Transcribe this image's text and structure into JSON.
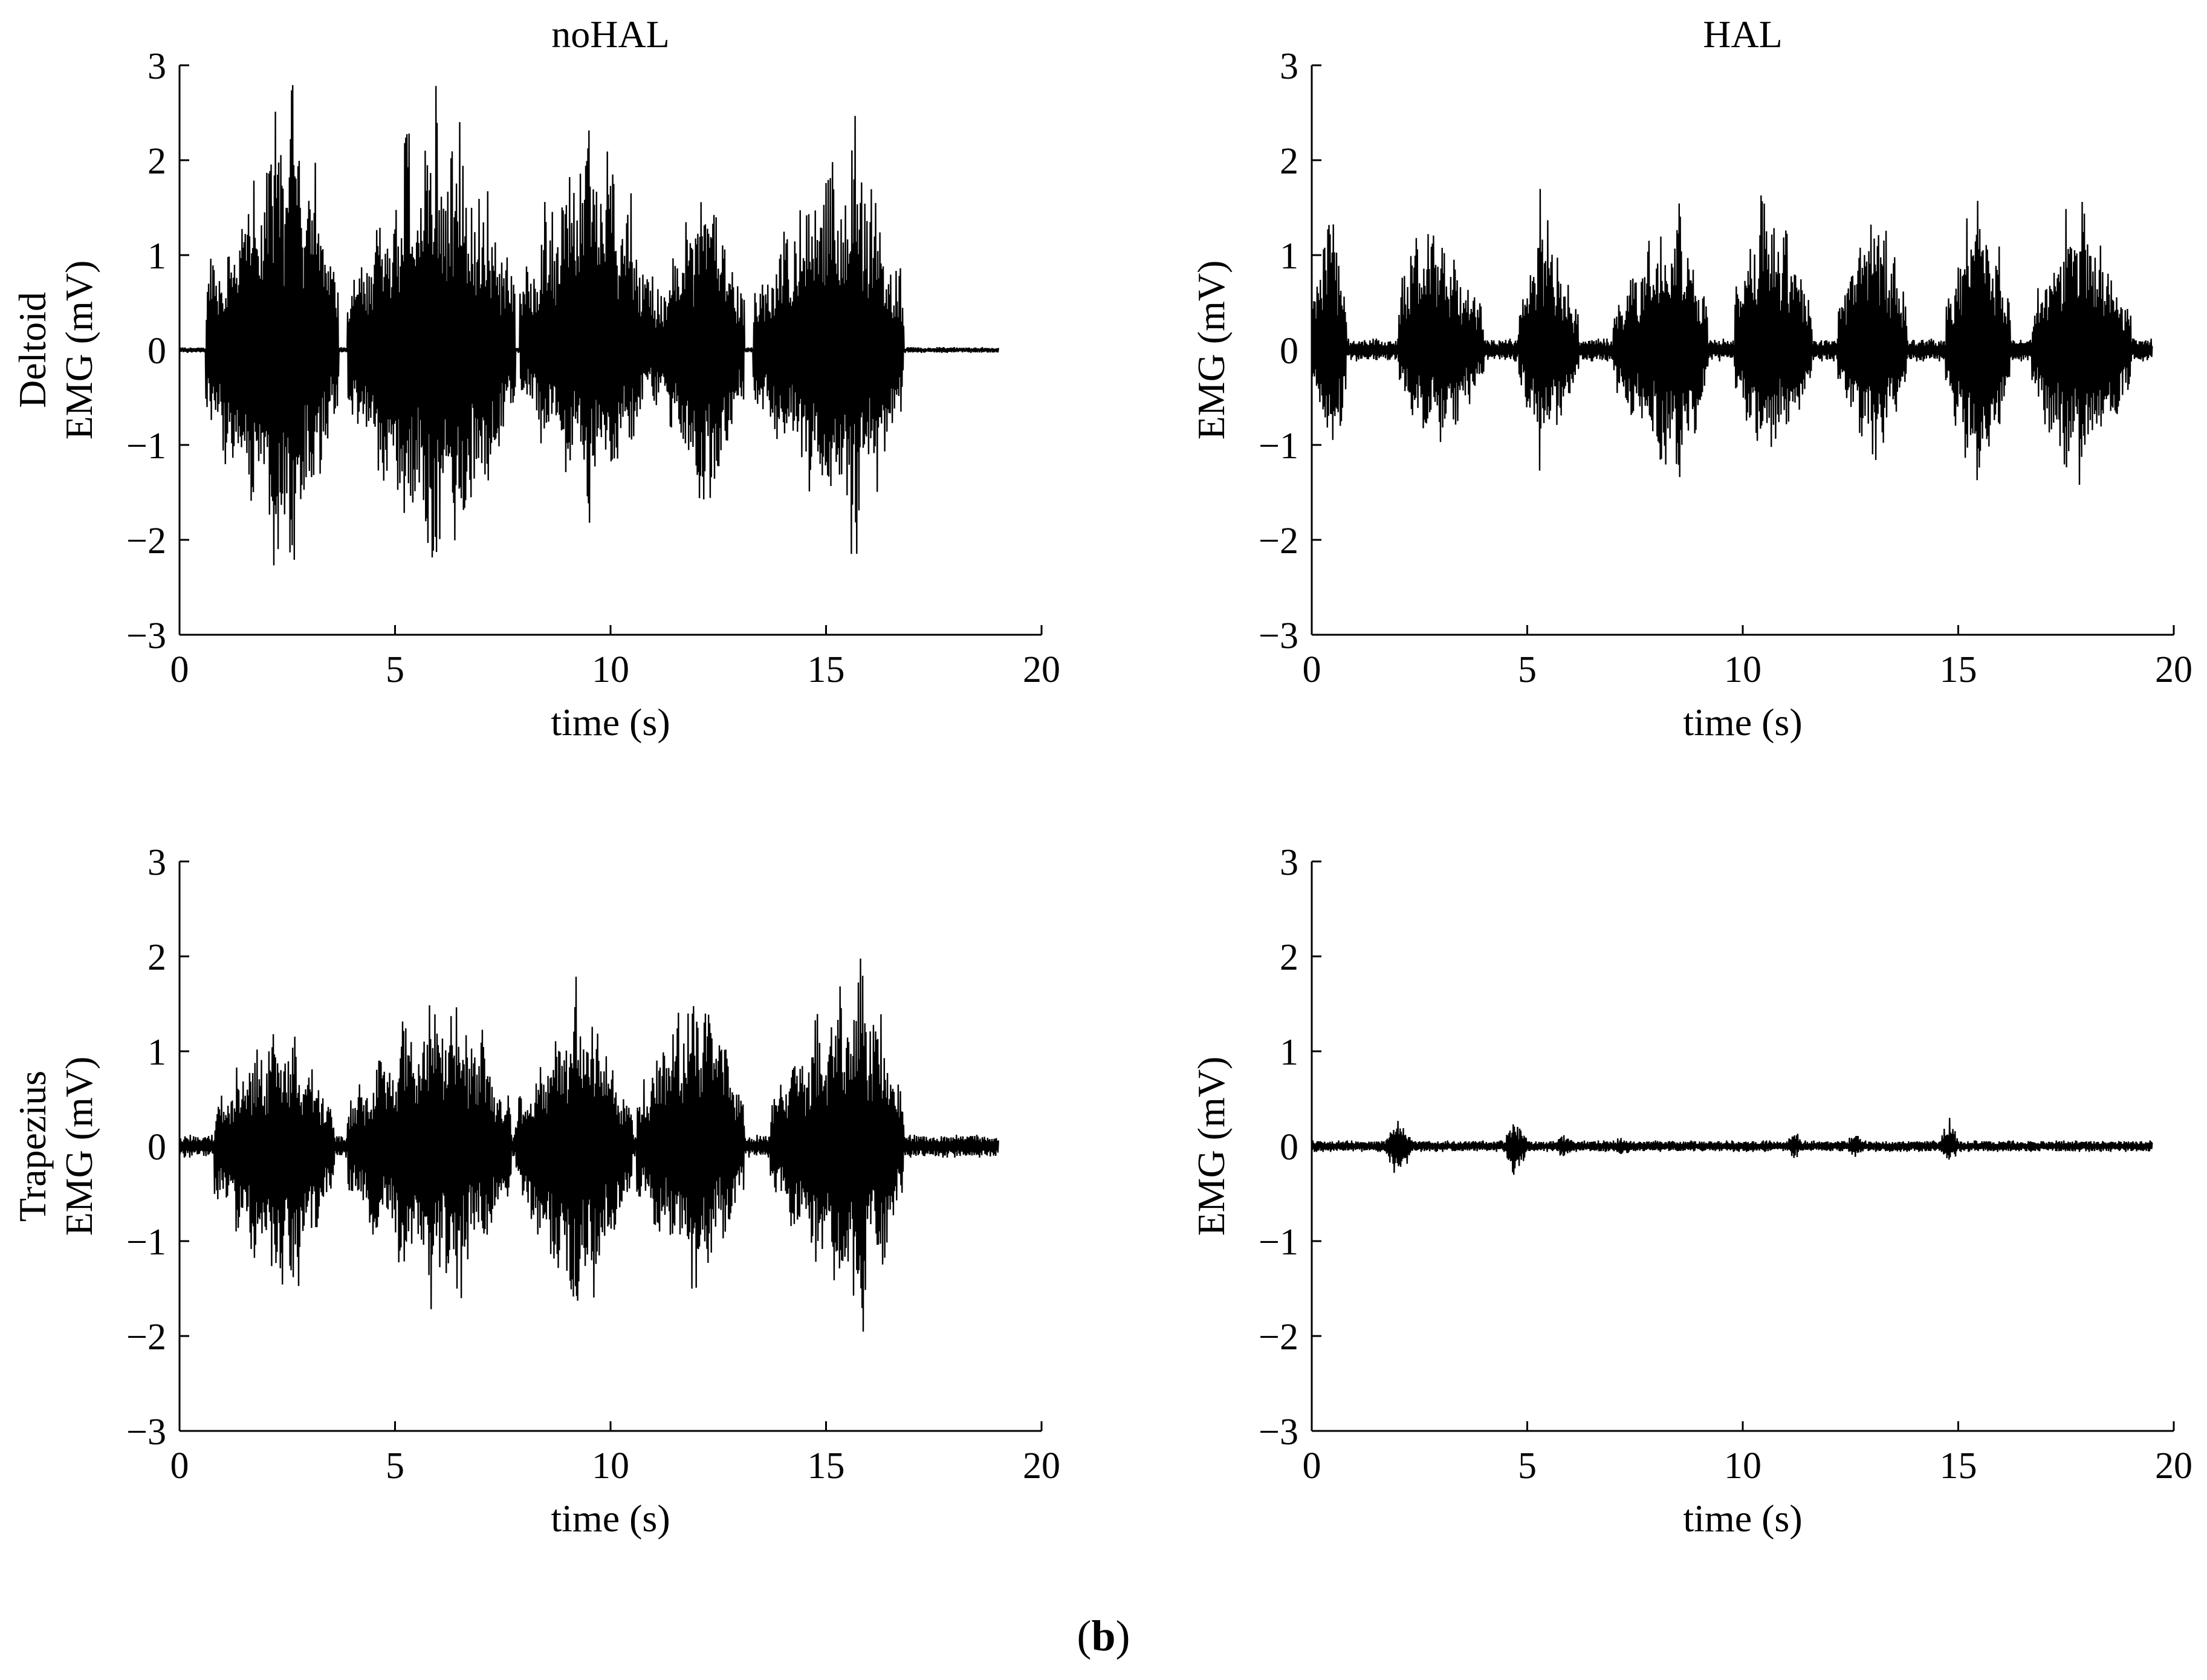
{
  "caption": {
    "open": "(",
    "letter": "b",
    "close": ")"
  },
  "rows": [
    {
      "label": "Deltoid"
    },
    {
      "label": "Trapezius"
    }
  ],
  "columns": [
    {
      "title": "noHAL"
    },
    {
      "title": "HAL"
    }
  ],
  "chart_data": [
    {
      "type": "line",
      "panel": "top-left",
      "title": "noHAL",
      "row_label": "Deltoid",
      "xlabel": "time (s)",
      "ylabel": "EMG (mV)",
      "xlim": [
        0,
        20
      ],
      "ylim": [
        -3,
        3
      ],
      "xticks": [
        0,
        5,
        10,
        15,
        20
      ],
      "yticks": [
        -3,
        -2,
        -1,
        0,
        1,
        2,
        3
      ],
      "grid": false,
      "signal_end": 19,
      "bursts": [
        {
          "start": 0.6,
          "end": 3.7,
          "peak_time": 2.6,
          "amp_max": 2.9,
          "amp_min": -2.6
        },
        {
          "start": 3.9,
          "end": 7.8,
          "peak_time": 6.0,
          "amp_max": 2.9,
          "amp_min": -2.7
        },
        {
          "start": 7.9,
          "end": 11.0,
          "peak_time": 9.6,
          "amp_max": 2.8,
          "amp_min": -1.9
        },
        {
          "start": 11.0,
          "end": 13.1,
          "peak_time": 12.3,
          "amp_max": 2.2,
          "amp_min": -2.0
        },
        {
          "start": 13.3,
          "end": 16.8,
          "peak_time": 15.6,
          "amp_max": 2.6,
          "amp_min": -2.3
        }
      ],
      "baseline_noise": 0.03
    },
    {
      "type": "line",
      "panel": "top-right",
      "title": "HAL",
      "row_label": "",
      "xlabel": "time (s)",
      "ylabel": "EMG (mV)",
      "xlim": [
        0,
        20
      ],
      "ylim": [
        -3,
        3
      ],
      "xticks": [
        0,
        5,
        10,
        15,
        20
      ],
      "yticks": [
        -3,
        -2,
        -1,
        0,
        1,
        2,
        3
      ],
      "grid": false,
      "signal_end": 19.5,
      "bursts": [
        {
          "start": 0.0,
          "end": 0.8,
          "peak_time": 0.5,
          "amp_max": 1.8,
          "amp_min": -1.5
        },
        {
          "start": 2.0,
          "end": 4.0,
          "peak_time": 2.6,
          "amp_max": 1.8,
          "amp_min": -1.2
        },
        {
          "start": 4.8,
          "end": 6.2,
          "peak_time": 5.3,
          "amp_max": 1.7,
          "amp_min": -1.3
        },
        {
          "start": 7.0,
          "end": 9.2,
          "peak_time": 8.5,
          "amp_max": 1.7,
          "amp_min": -1.6
        },
        {
          "start": 9.8,
          "end": 11.6,
          "peak_time": 10.5,
          "amp_max": 2.0,
          "amp_min": -1.5
        },
        {
          "start": 12.2,
          "end": 13.8,
          "peak_time": 13.1,
          "amp_max": 1.8,
          "amp_min": -1.4
        },
        {
          "start": 14.7,
          "end": 16.2,
          "peak_time": 15.5,
          "amp_max": 1.9,
          "amp_min": -1.7
        },
        {
          "start": 16.7,
          "end": 19.0,
          "peak_time": 17.7,
          "amp_max": 1.7,
          "amp_min": -1.6
        }
      ],
      "baseline_noise": 0.12
    },
    {
      "type": "line",
      "panel": "bottom-left",
      "title": "",
      "row_label": "Trapezius",
      "xlabel": "time (s)",
      "ylabel": "EMG (mV)",
      "xlim": [
        0,
        20
      ],
      "ylim": [
        -3,
        3
      ],
      "xticks": [
        0,
        5,
        10,
        15,
        20
      ],
      "yticks": [
        -3,
        -2,
        -1,
        0,
        1,
        2,
        3
      ],
      "grid": false,
      "signal_end": 19,
      "bursts": [
        {
          "start": 0.8,
          "end": 3.6,
          "peak_time": 2.4,
          "amp_max": 1.5,
          "amp_min": -1.9
        },
        {
          "start": 3.9,
          "end": 7.7,
          "peak_time": 6.2,
          "amp_max": 1.9,
          "amp_min": -1.9
        },
        {
          "start": 7.8,
          "end": 10.5,
          "peak_time": 9.2,
          "amp_max": 1.8,
          "amp_min": -2.0
        },
        {
          "start": 10.6,
          "end": 13.1,
          "peak_time": 12.0,
          "amp_max": 2.0,
          "amp_min": -1.8
        },
        {
          "start": 13.7,
          "end": 16.8,
          "peak_time": 15.8,
          "amp_max": 2.0,
          "amp_min": -2.1
        }
      ],
      "baseline_noise": 0.12
    },
    {
      "type": "line",
      "panel": "bottom-right",
      "title": "",
      "row_label": "",
      "xlabel": "time (s)",
      "ylabel": "EMG (mV)",
      "xlim": [
        0,
        20
      ],
      "ylim": [
        -3,
        3
      ],
      "xticks": [
        0,
        5,
        10,
        15,
        20
      ],
      "yticks": [
        -3,
        -2,
        -1,
        0,
        1,
        2,
        3
      ],
      "grid": false,
      "signal_end": 19.5,
      "bursts": [
        {
          "start": 1.7,
          "end": 2.3,
          "peak_time": 2.0,
          "amp_max": 0.35,
          "amp_min": -0.35
        },
        {
          "start": 4.5,
          "end": 5.0,
          "peak_time": 4.7,
          "amp_max": 0.35,
          "amp_min": -0.4
        },
        {
          "start": 5.7,
          "end": 6.1,
          "peak_time": 5.8,
          "amp_max": 0.18,
          "amp_min": -0.15
        },
        {
          "start": 7.0,
          "end": 7.5,
          "peak_time": 7.2,
          "amp_max": 0.12,
          "amp_min": -0.14
        },
        {
          "start": 11.0,
          "end": 11.4,
          "peak_time": 11.2,
          "amp_max": 0.2,
          "amp_min": -0.15
        },
        {
          "start": 12.4,
          "end": 12.8,
          "peak_time": 12.6,
          "amp_max": 0.18,
          "amp_min": -0.14
        },
        {
          "start": 14.6,
          "end": 15.0,
          "peak_time": 14.8,
          "amp_max": 0.35,
          "amp_min": -0.2
        }
      ],
      "baseline_noise": 0.06
    }
  ]
}
